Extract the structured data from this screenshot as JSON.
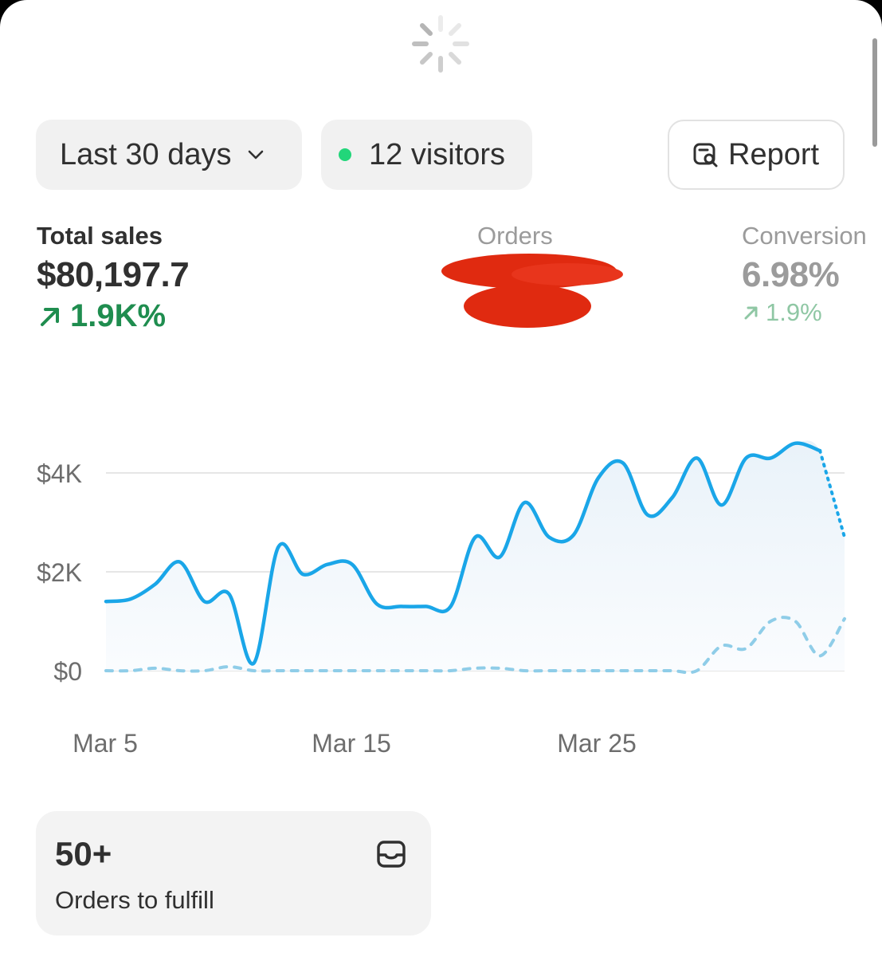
{
  "toolbar": {
    "range_label": "Last 30 days",
    "visitors_label": "12 visitors",
    "report_label": "Report"
  },
  "metrics": {
    "total_sales": {
      "label": "Total sales",
      "value": "$80,197.7",
      "delta": "1.9K%"
    },
    "orders": {
      "label": "Orders"
    },
    "conversion": {
      "label": "Conversion",
      "value": "6.98%",
      "delta": "1.9%"
    }
  },
  "colors": {
    "accent": "#1aa6e8",
    "comparison": "#8fcde8",
    "positive": "#1f8d4f",
    "live_dot": "#22d67a",
    "redaction": "#e02a10"
  },
  "icons": [
    "spinner-icon",
    "chevron-down-icon",
    "live-dot-icon",
    "report-search-icon",
    "arrow-up-right-icon",
    "inbox-icon"
  ],
  "chart_data": {
    "type": "line",
    "x_ticks": [
      "Mar 5",
      "Mar 15",
      "Mar 25"
    ],
    "y_ticks": [
      "$0",
      "$2K",
      "$4K"
    ],
    "ylim": [
      0,
      4800
    ],
    "grid": true,
    "series": [
      {
        "style": "solid",
        "x": [
          1,
          2,
          3,
          4,
          5,
          6,
          7,
          8,
          9,
          10,
          11,
          12,
          13,
          14,
          15,
          16,
          17,
          18,
          19,
          20,
          21,
          22,
          23,
          24,
          25,
          26,
          27,
          28,
          29,
          30,
          31
        ],
        "values": [
          1400,
          1450,
          1750,
          2200,
          1400,
          1550,
          150,
          2500,
          1950,
          2150,
          2150,
          1350,
          1300,
          1300,
          1300,
          2700,
          2300,
          3400,
          2700,
          2750,
          3900,
          4200,
          3150,
          3500,
          4300,
          3350,
          4300,
          4300,
          4600,
          4450,
          2700
        ]
      },
      {
        "style": "dashed",
        "x": [
          1,
          2,
          3,
          4,
          5,
          6,
          7,
          8,
          9,
          10,
          11,
          12,
          13,
          14,
          15,
          16,
          17,
          18,
          19,
          20,
          21,
          22,
          23,
          24,
          25,
          26,
          27,
          28,
          29,
          30,
          31
        ],
        "values": [
          0,
          0,
          50,
          0,
          0,
          80,
          0,
          0,
          0,
          0,
          0,
          0,
          0,
          0,
          0,
          50,
          50,
          0,
          0,
          0,
          0,
          0,
          0,
          0,
          0,
          500,
          450,
          1000,
          1000,
          300,
          1050
        ]
      }
    ]
  },
  "card": {
    "count": "50+",
    "label": "Orders to fulfill"
  }
}
